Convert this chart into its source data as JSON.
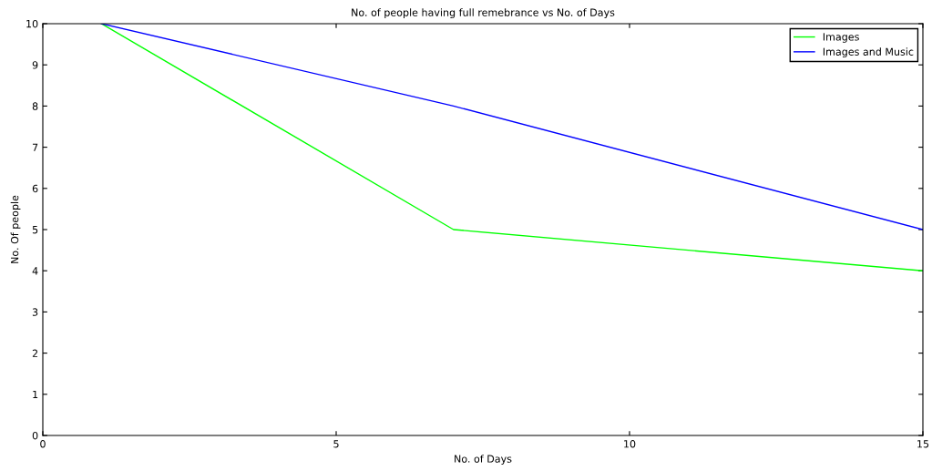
{
  "chart_data": {
    "type": "line",
    "title": "No. of people having full remebrance vs No. of Days",
    "xlabel": "No. of Days",
    "ylabel": "No. Of people",
    "x": [
      1,
      7,
      15
    ],
    "series": [
      {
        "name": "Images",
        "color": "#00ff00",
        "values": [
          10,
          5,
          4
        ]
      },
      {
        "name": "Images and Music",
        "color": "#0000ff",
        "values": [
          10,
          8,
          5
        ]
      }
    ],
    "xlim": [
      0,
      15
    ],
    "xticks": [
      0,
      5,
      10,
      15
    ],
    "ylim": [
      0,
      10
    ],
    "yticks": [
      0,
      1,
      2,
      3,
      4,
      5,
      6,
      7,
      8,
      9,
      10
    ],
    "grid": false,
    "legend": "top right",
    "marker": "none",
    "line_style": "solid"
  }
}
